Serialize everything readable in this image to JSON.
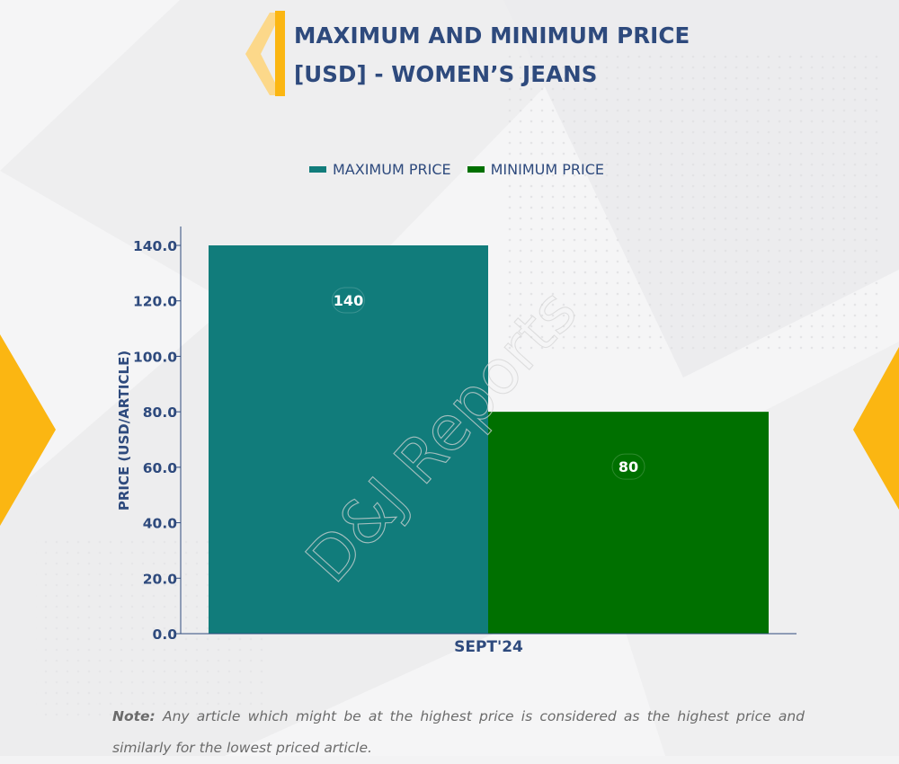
{
  "title_line1": "MAXIMUM AND MINIMUM PRICE",
  "title_line2": "[USD] - WOMEN’S JEANS",
  "watermark": "D&J Reports",
  "note_label": "Note:",
  "note_text": "Any article which might be at the highest price is considered as the highest price and similarly for the lowest priced article.",
  "colors": {
    "accent": "#fbb612",
    "title": "#2e4a7d",
    "max_price": "#117c7b",
    "min_price": "#007000"
  },
  "chart_data": {
    "type": "bar",
    "categories": [
      "SEPT'24"
    ],
    "series": [
      {
        "name": "MAXIMUM PRICE",
        "values": [
          140
        ],
        "color": "#117c7b"
      },
      {
        "name": "MINIMUM PRICE",
        "values": [
          80
        ],
        "color": "#007000"
      }
    ],
    "data_labels": [
      "140",
      "80"
    ],
    "ylabel": "PRICE (USD/ARTICLE)",
    "xlabel": "",
    "ylim": [
      0,
      140
    ],
    "yticks": [
      0,
      20,
      40,
      60,
      80,
      100,
      120,
      140
    ],
    "ytick_labels": [
      "0.0",
      "20.0",
      "40.0",
      "60.0",
      "80.0",
      "100.0",
      "120.0",
      "140.0"
    ],
    "grid": false,
    "legend_position": "top-center"
  }
}
